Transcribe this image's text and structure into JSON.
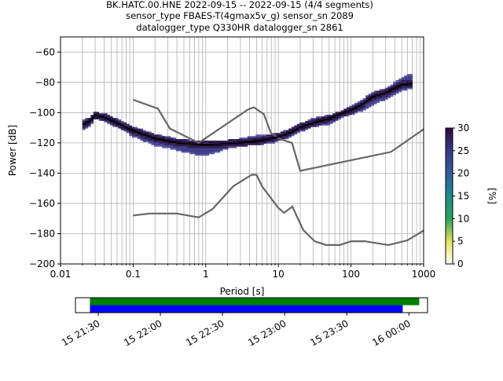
{
  "title_lines": [
    "BK.HATC.00.HNE   2022-09-15 -- 2022-09-15  (4/4 segments)",
    "sensor_type FBAES-T(4gmax5v_g) sensor_sn 2089",
    "datalogger_type Q330HR datalogger_sn 2861"
  ],
  "chart_data": {
    "type": "heatmap",
    "xlabel": "Period [s]",
    "ylabel": "Power [dB]",
    "xscale": "log",
    "xlim": [
      0.01,
      1000
    ],
    "ylim": [
      -200,
      -50
    ],
    "x_ticks": [
      0.01,
      0.1,
      1,
      10,
      100,
      1000
    ],
    "x_tick_labels": [
      "0.01",
      "0.1",
      "1",
      "10",
      "100",
      "1000"
    ],
    "y_ticks": [
      -200,
      -180,
      -160,
      -140,
      -120,
      -100,
      -80,
      -60
    ],
    "y_tick_labels": [
      "−200",
      "−180",
      "−160",
      "−140",
      "−120",
      "−100",
      "−80",
      "−60"
    ],
    "grid": true,
    "colorbar": {
      "label": "[%]",
      "range": [
        0,
        30
      ],
      "ticks": [
        0,
        5,
        10,
        15,
        20,
        25,
        30
      ],
      "tick_labels": [
        "0",
        "5",
        "10",
        "15",
        "20",
        "25",
        "30"
      ],
      "colors": [
        "#ffffff",
        "#e5e35e",
        "#2ba35a",
        "#1f8d8a",
        "#2f5e9e",
        "#3a3a85",
        "#2c0b3e"
      ]
    },
    "noise_model_high": {
      "color": "#666666",
      "period": [
        0.1,
        0.22,
        0.32,
        0.8,
        3.8,
        4.6,
        6.3,
        7.9,
        10,
        15.4,
        20,
        354.8,
        1000
      ],
      "power": [
        -91.5,
        -97.4,
        -110.5,
        -120,
        -98,
        -96.5,
        -101,
        -113.5,
        -117,
        -120,
        -138.5,
        -126,
        -111
      ]
    },
    "noise_model_low": {
      "color": "#666666",
      "period": [
        0.1,
        0.17,
        0.4,
        0.8,
        1.24,
        2.4,
        4.3,
        5,
        6,
        10,
        12,
        15.6,
        21.9,
        31.6,
        45,
        70,
        101,
        154,
        328,
        600,
        1000
      ],
      "power": [
        -168,
        -166.7,
        -166.7,
        -169.2,
        -163.7,
        -148.6,
        -141.1,
        -141.1,
        -149,
        -163,
        -166.2,
        -162.1,
        -177.5,
        -185,
        -187.5,
        -187.5,
        -185,
        -185,
        -187.5,
        -184.4,
        -178
      ]
    },
    "median_curve": {
      "color": "#000000",
      "period": [
        0.02,
        0.025,
        0.03,
        0.04,
        0.06,
        0.1,
        0.2,
        0.4,
        0.7,
        1,
        1.5,
        2,
        3,
        5,
        8,
        10,
        15,
        20,
        30,
        50,
        70,
        100,
        150,
        200,
        300,
        500,
        700
      ],
      "power": [
        -108,
        -106,
        -101.5,
        -103,
        -107,
        -112,
        -117,
        -120,
        -121,
        -121.3,
        -121,
        -120.5,
        -120,
        -119,
        -117,
        -116,
        -113,
        -109.5,
        -107,
        -104,
        -101,
        -98.5,
        -94,
        -89.5,
        -87,
        -81.5,
        -81
      ]
    },
    "upper_band": {
      "period": [
        0.02,
        0.025,
        0.03,
        0.04,
        0.06,
        0.1,
        0.2,
        0.4,
        0.7,
        1,
        1.5,
        2,
        3,
        5,
        8,
        10,
        15,
        20,
        30,
        50,
        70,
        100,
        150,
        200,
        300,
        500,
        700
      ],
      "power": [
        -106,
        -104,
        -100.5,
        -101.5,
        -105,
        -110,
        -115,
        -118,
        -119.5,
        -120,
        -119.5,
        -119,
        -118,
        -116,
        -115,
        -114.5,
        -111,
        -108,
        -104.5,
        -102.5,
        -100,
        -96.5,
        -91.5,
        -87,
        -85,
        -77.5,
        -75
      ]
    },
    "lower_band": {
      "period": [
        0.02,
        0.025,
        0.03,
        0.04,
        0.06,
        0.1,
        0.2,
        0.4,
        0.7,
        1,
        1.5,
        2,
        3,
        5,
        8,
        10,
        15,
        20,
        30,
        50,
        70,
        100,
        150,
        200,
        300,
        500,
        700
      ],
      "power": [
        -111,
        -108.5,
        -103,
        -105,
        -109,
        -115,
        -121,
        -124,
        -127,
        -127.5,
        -125,
        -123,
        -121.5,
        -120.5,
        -119.5,
        -118,
        -115.5,
        -112,
        -108.5,
        -107,
        -103,
        -100.5,
        -98,
        -94,
        -90.5,
        -85,
        -83
      ]
    }
  },
  "timeline": {
    "tick_labels": [
      "15 21:30",
      "15 22:00",
      "15 22:30",
      "15 23:00",
      "15 23:30",
      "16 00:00"
    ],
    "data_span_label": "",
    "bars": [
      {
        "color": "#008000",
        "start": "15 21:26",
        "end": "16 00:05",
        "label": ""
      },
      {
        "color": "#0000ff",
        "start": "15 21:26",
        "end": "15 23:57",
        "label": ""
      }
    ]
  }
}
